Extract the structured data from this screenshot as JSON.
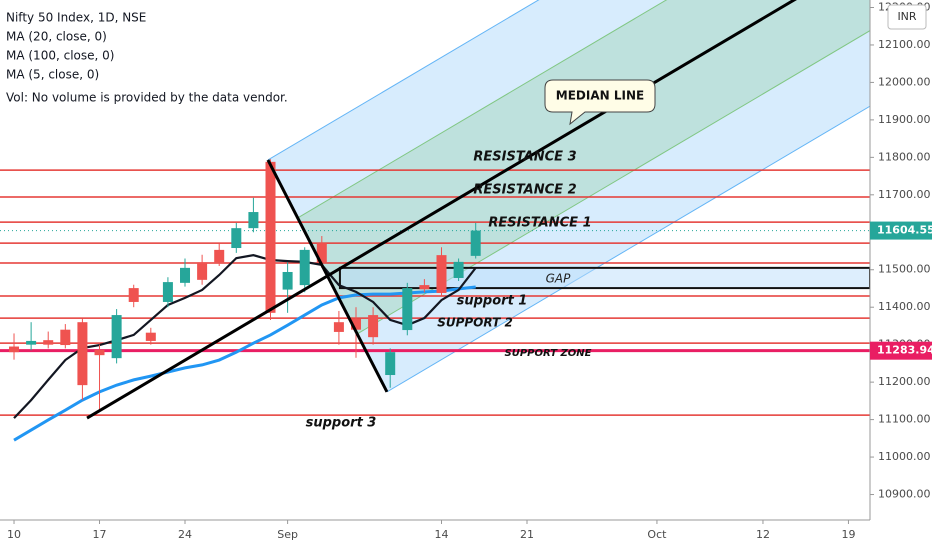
{
  "chart_data": {
    "type": "candlestick",
    "title": "Nifty 50 Index, 1D, NSE",
    "note": "Vol: No volume is provided by the data vendor.",
    "currency": "INR",
    "x": [
      0,
      1,
      2,
      3,
      4,
      5,
      6,
      7,
      8,
      9,
      10,
      11,
      12,
      13,
      14,
      15,
      16,
      17,
      18,
      19,
      20,
      21,
      22,
      23,
      24,
      25,
      26,
      27
    ],
    "open": [
      11295,
      11300,
      11312,
      11340,
      11360,
      11286,
      11264,
      11451,
      11332,
      11414,
      11465,
      11520,
      11553,
      11558,
      11611,
      11788,
      11447,
      11459,
      11571,
      11360,
      11370,
      11379,
      11219,
      11339,
      11459,
      11539,
      11478,
      11537
    ],
    "high": [
      11330,
      11360,
      11335,
      11355,
      11370,
      11300,
      11395,
      11460,
      11345,
      11480,
      11530,
      11540,
      11570,
      11625,
      11692,
      11795,
      11520,
      11560,
      11590,
      11390,
      11400,
      11400,
      11290,
      11465,
      11475,
      11560,
      11530,
      11625
    ],
    "low": [
      11260,
      11285,
      11290,
      11290,
      11152,
      11120,
      11250,
      11400,
      11300,
      11400,
      11455,
      11460,
      11510,
      11545,
      11600,
      11366,
      11385,
      11440,
      11505,
      11300,
      11265,
      11300,
      11185,
      11325,
      11440,
      11430,
      11470,
      11530
    ],
    "close": [
      11280,
      11310,
      11300,
      11299,
      11192,
      11272,
      11379,
      11414,
      11310,
      11467,
      11505,
      11473,
      11520,
      11611,
      11654,
      11385,
      11494,
      11553,
      11520,
      11334,
      11340,
      11320,
      11280,
      11451,
      11448,
      11438,
      11521,
      11604.55
    ],
    "up_color": "#26a69a",
    "down_color": "#ef5350",
    "series": [
      {
        "name": "MA (20, close, 0)",
        "color": "#2196f3",
        "values": [
          11045,
          11072,
          11099,
          11125,
          11152,
          11174,
          11192,
          11206,
          11216,
          11227,
          11238,
          11246,
          11259,
          11280,
          11304,
          11326,
          11352,
          11379,
          11406,
          11425,
          11433,
          11435,
          11435,
          11438,
          11441,
          11443,
          11449,
          11454
        ]
      },
      {
        "name": "MA (5, close, 0)",
        "color": "#131722",
        "values": [
          11104,
          11152,
          11206,
          11259,
          11291,
          11299,
          11312,
          11326,
          11366,
          11406,
          11425,
          11446,
          11486,
          11531,
          11539,
          11526,
          11523,
          11521,
          11513,
          11459,
          11441,
          11414,
          11366,
          11352,
          11371,
          11419,
          11446,
          11505
        ]
      }
    ],
    "hidden_indicators": [
      "MA (100, close, 0)"
    ],
    "xlim": [
      -0.82,
      50.06
    ],
    "xticks": [
      {
        "value": 0,
        "label": "10"
      },
      {
        "value": 5,
        "label": "17"
      },
      {
        "value": 10,
        "label": "24"
      },
      {
        "value": 16,
        "label": "Sep"
      },
      {
        "value": 25,
        "label": "14"
      },
      {
        "value": 30,
        "label": "21"
      },
      {
        "value": 37.6,
        "label": "Oct"
      },
      {
        "value": 43.8,
        "label": "12"
      },
      {
        "value": 48.8,
        "label": "19"
      }
    ],
    "ylim": [
      10832,
      12220
    ],
    "yticks": [
      {
        "value": 10900,
        "label": "10900.00"
      },
      {
        "value": 11000,
        "label": "11000.00"
      },
      {
        "value": 11100,
        "label": "11100.00"
      },
      {
        "value": 11200,
        "label": "11200.00"
      },
      {
        "value": 11300,
        "label": "11300.00"
      },
      {
        "value": 11400,
        "label": "11400.00"
      },
      {
        "value": 11500,
        "label": "11500.00"
      },
      {
        "value": 11600,
        "label": "11600.00"
      },
      {
        "value": 11700,
        "label": "11700.00"
      },
      {
        "value": 11800,
        "label": "11800.00"
      },
      {
        "value": 11900,
        "label": "11900.00"
      },
      {
        "value": 12000,
        "label": "12000.00"
      },
      {
        "value": 12100,
        "label": "12100.00"
      },
      {
        "value": 12200,
        "label": "12200.00"
      }
    ],
    "levels": [
      11766,
      11694,
      11627,
      11571,
      11518,
      11430,
      11371,
      11304,
      11112
    ],
    "level_color": "#e53935",
    "last_price": 11604.55,
    "support_zone": 11283.94,
    "support_zone_color": "#e91e63",
    "pitchfork": {
      "x": [
        4.27,
        14.85,
        21.81
      ],
      "y": [
        11104,
        11793,
        11174
      ]
    },
    "gap": {
      "label": "GAP",
      "x": 19.06,
      "top": 11505,
      "bottom": 11451
    },
    "annotations": [
      "RESISTANCE 3",
      "RESISTANCE 2",
      "RESISTANCE 1",
      "support 1",
      "SUPPORT 2",
      "SUPPORT ZONE",
      "support 3"
    ],
    "callout": "MEDIAN LINE"
  }
}
